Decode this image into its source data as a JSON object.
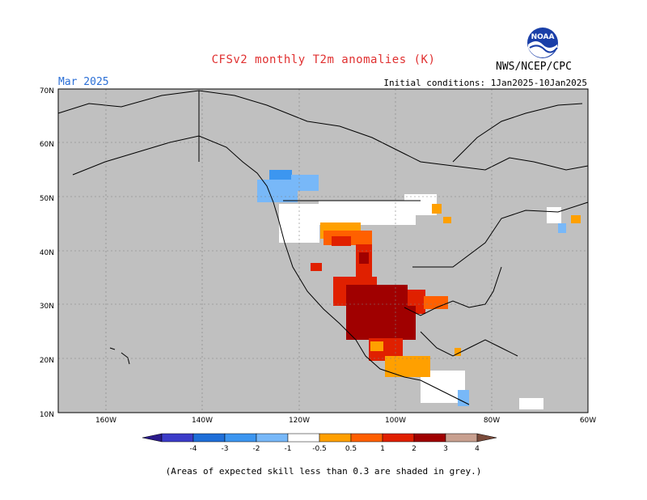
{
  "header": {
    "title": "CFSv2 monthly T2m anomalies (K)",
    "title_color": "#e03030",
    "month": "Mar 2025",
    "month_color": "#2b6fd6",
    "initial_conditions": "Initial conditions: 1Jan2025-10Jan2025",
    "agency": "NWS/NCEP/CPC",
    "logo_text": "NOAA"
  },
  "map": {
    "lat_labels": [
      "70N",
      "60N",
      "50N",
      "40N",
      "30N",
      "20N",
      "10N"
    ],
    "lon_labels": [
      "160W",
      "140W",
      "120W",
      "100W",
      "80W",
      "60W"
    ],
    "land_skill_color": "#c0c0c0"
  },
  "legend": {
    "labels": [
      "-4",
      "-3",
      "-2",
      "-1",
      "-0.5",
      "0.5",
      "1",
      "2",
      "3",
      "4"
    ],
    "colors": [
      "#2a1a8a",
      "#3c3cc8",
      "#1f6fd8",
      "#3c96f0",
      "#78b8f8",
      "#ffffff",
      "#ffa000",
      "#ff6000",
      "#e02000",
      "#a00000",
      "#c8a090",
      "#7a4a3a"
    ]
  },
  "footnote": "(Areas of expected skill less than 0.3 are shaded in grey.)"
}
